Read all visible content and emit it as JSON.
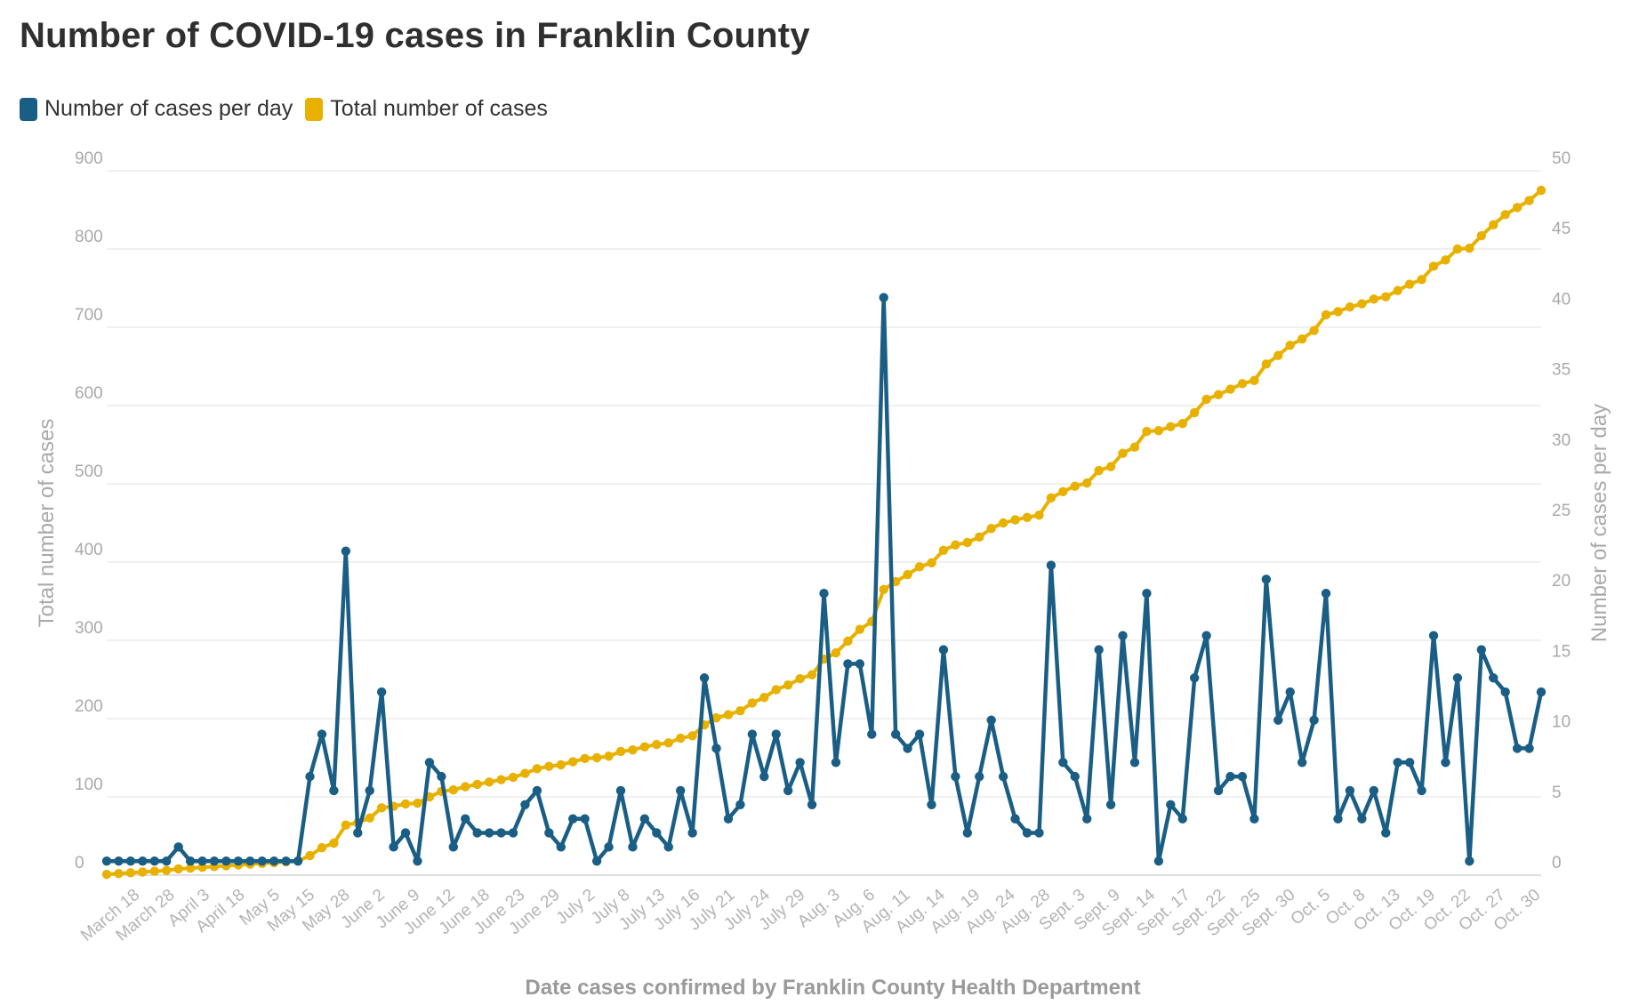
{
  "colors": {
    "daily": "#1a5e85",
    "total": "#e8b100",
    "grid": "#e6e6e6",
    "axis_text": "#a9a9a9"
  },
  "title": "Number of COVID-19 cases in Franklin County",
  "legend": [
    {
      "label": "Number of cases per day",
      "color": "#1a5e85"
    },
    {
      "label": "Total number of cases",
      "color": "#e8b100"
    }
  ],
  "chart_data": {
    "type": "line",
    "title": "Number of COVID-19 cases in Franklin County",
    "xlabel": "Date cases confirmed by Franklin County Health Department",
    "ylabel_left": "Total number of cases",
    "ylabel_right": "Number of cases per day",
    "ylim_left": [
      0,
      900
    ],
    "ylim_right": [
      0,
      50
    ],
    "yticks_left": [
      0,
      100,
      200,
      300,
      400,
      500,
      600,
      700,
      800,
      900
    ],
    "yticks_right": [
      0,
      5,
      10,
      15,
      20,
      25,
      30,
      35,
      40,
      45,
      50
    ],
    "x_tick_labels": [
      "March 18",
      "March 28",
      "April 3",
      "April 18",
      "May 5",
      "May 15",
      "May 28",
      "June 2",
      "June 9",
      "June 12",
      "June 18",
      "June 23",
      "June 29",
      "July 2",
      "July 8",
      "July 13",
      "July 16",
      "July 21",
      "July 24",
      "July 29",
      "Aug. 3",
      "Aug. 6",
      "Aug. 11",
      "Aug. 14",
      "Aug. 19",
      "Aug. 24",
      "Aug. 28",
      "Sept. 3",
      "Sept. 9",
      "Sept. 14",
      "Sept. 17",
      "Sept. 22",
      "Sept. 25",
      "Sept. 30",
      "Oct. 5",
      "Oct. 8",
      "Oct. 13",
      "Oct. 19",
      "Oct. 22",
      "Oct. 27",
      "Oct. 30"
    ],
    "grid": true,
    "legend_position": "top-left",
    "series": [
      {
        "name": "Number of cases per day",
        "axis": "right",
        "values": [
          1,
          1,
          1,
          1,
          1,
          1,
          2,
          1,
          1,
          1,
          1,
          1,
          1,
          1,
          1,
          1,
          1,
          7,
          10,
          6,
          23,
          3,
          6,
          13,
          2,
          3,
          1,
          8,
          7,
          2,
          4,
          3,
          3,
          3,
          3,
          5,
          6,
          3,
          2,
          4,
          4,
          1,
          2,
          6,
          2,
          4,
          3,
          2,
          6,
          3,
          14,
          9,
          4,
          5,
          10,
          7,
          10,
          6,
          8,
          5,
          20,
          8,
          15,
          15,
          10,
          41,
          10,
          9,
          10,
          5,
          16,
          7,
          3,
          7,
          11,
          7,
          4,
          3,
          3,
          22,
          8,
          7,
          4,
          16,
          5,
          17,
          8,
          20,
          1,
          5,
          4,
          14,
          17,
          6,
          7,
          7,
          4,
          21,
          11,
          13,
          8,
          11,
          20,
          4,
          6,
          4,
          6,
          3,
          8,
          8,
          6,
          17,
          8,
          14,
          1,
          16,
          14,
          13,
          9,
          9,
          13
        ]
      },
      {
        "name": "Total number of cases",
        "axis": "left",
        "values": [
          1,
          2,
          3,
          4,
          5,
          6,
          8,
          9,
          10,
          11,
          12,
          13,
          14,
          15,
          16,
          17,
          18,
          25,
          35,
          41,
          64,
          67,
          73,
          86,
          88,
          91,
          92,
          100,
          107,
          109,
          113,
          116,
          119,
          122,
          125,
          130,
          136,
          139,
          141,
          145,
          149,
          150,
          152,
          158,
          160,
          164,
          167,
          169,
          175,
          178,
          192,
          201,
          205,
          210,
          220,
          227,
          237,
          243,
          251,
          256,
          276,
          284,
          299,
          314,
          324,
          365,
          375,
          384,
          394,
          399,
          415,
          422,
          425,
          432,
          443,
          450,
          454,
          457,
          460,
          482,
          490,
          497,
          501,
          517,
          522,
          539,
          547,
          567,
          568,
          573,
          577,
          591,
          608,
          614,
          621,
          628,
          632,
          653,
          664,
          677,
          685,
          696,
          716,
          720,
          726,
          730,
          736,
          739,
          747,
          755,
          761,
          778,
          786,
          800,
          801,
          817,
          831,
          844,
          853,
          862,
          875
        ]
      }
    ]
  }
}
